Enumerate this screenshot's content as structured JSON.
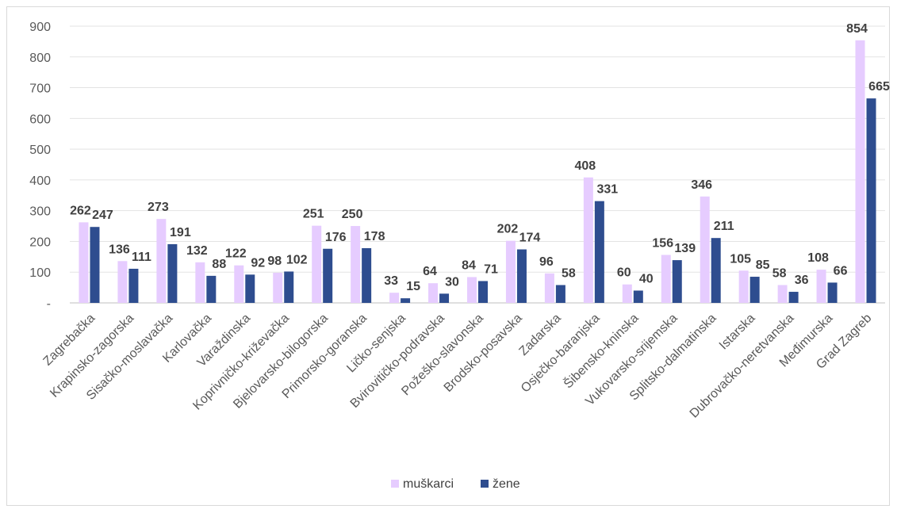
{
  "chart_data": {
    "type": "bar",
    "title": "",
    "xlabel": "",
    "ylabel": "",
    "ylim": [
      0,
      900
    ],
    "yticks": [
      "-",
      "100",
      "200",
      "300",
      "400",
      "500",
      "600",
      "700",
      "800",
      "900"
    ],
    "grid": true,
    "legend_position": "bottom",
    "categories": [
      "Zagrebačka",
      "Krapinsko-zagorska",
      "Sisačko-moslavačka",
      "Karlovačka",
      "Varaždinska",
      "Koprivničko-križevačka",
      "Bjelovarsko-bilogorska",
      "Primorsko-goranska",
      "Ličko-senjska",
      "Bvirovitičko-podravska",
      "Požeško-slavonska",
      "Brodsko-posavska",
      "Zadarska",
      "Osječko-baranjska",
      "Šibensko-kninska",
      "Vukovarsko-srijemska",
      "Splitsko-dalmatinska",
      "Istarska",
      "Dubrovačko-neretvanska",
      "Međimurska",
      "Grad Zagreb"
    ],
    "series": [
      {
        "name": "muškarci",
        "color": "#e6ccff",
        "values": [
          262,
          136,
          273,
          132,
          122,
          98,
          251,
          250,
          33,
          64,
          84,
          202,
          96,
          408,
          60,
          156,
          346,
          105,
          58,
          108,
          854
        ]
      },
      {
        "name": "žene",
        "color": "#2e4d8f",
        "values": [
          247,
          111,
          191,
          88,
          92,
          102,
          176,
          178,
          15,
          30,
          71,
          174,
          58,
          331,
          40,
          139,
          211,
          85,
          36,
          66,
          665
        ]
      }
    ]
  }
}
